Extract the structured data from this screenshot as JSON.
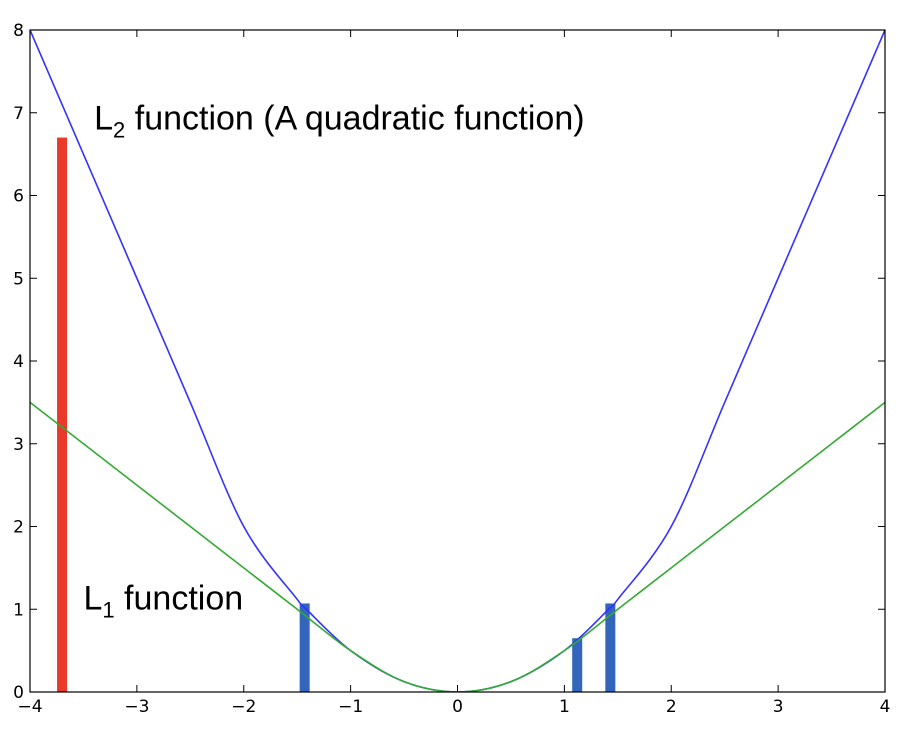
{
  "chart_data": {
    "type": "line",
    "xlim": [
      -4,
      4
    ],
    "ylim": [
      0,
      8
    ],
    "x_ticks": [
      "−4",
      "−3",
      "−2",
      "−1",
      "0",
      "1",
      "2",
      "3",
      "4"
    ],
    "y_ticks": [
      "0",
      "1",
      "2",
      "3",
      "4",
      "5",
      "6",
      "7",
      "8"
    ],
    "grid": false,
    "series": [
      {
        "color": "#3333ff",
        "x": [
          -4,
          -3.5,
          -3,
          -2.5,
          -2,
          -1.5,
          -1.4142,
          -1,
          -0.5,
          0,
          0.5,
          1,
          1.4142,
          1.5,
          2,
          2.5,
          3,
          3.5,
          4
        ],
        "y": [
          8.0,
          6.5,
          5.0,
          3.5,
          2.0,
          1.12,
          1.0,
          0.5,
          0.125,
          0,
          0.125,
          0.5,
          1.0,
          1.12,
          2.0,
          3.5,
          5.0,
          6.5,
          8.0
        ]
      },
      {
        "color": "#33aa33",
        "x": [
          -4,
          -3.5,
          -3,
          -2.5,
          -2,
          -1.5,
          -1,
          -0.5,
          0,
          0.5,
          1,
          1.5,
          2,
          2.5,
          3,
          3.5,
          4
        ],
        "y": [
          3.5,
          3.0,
          2.5,
          2.0,
          1.5,
          1.0,
          0.5,
          0.125,
          0,
          0.125,
          0.5,
          1.0,
          1.5,
          2.0,
          2.5,
          3.0,
          3.5
        ]
      }
    ],
    "bars": [
      {
        "x": -3.7,
        "y": 6.7,
        "color": "#e8392a"
      },
      {
        "x": -1.43,
        "y": 1.07,
        "color": "#3366bb"
      },
      {
        "x": 1.12,
        "y": 0.65,
        "color": "#3366bb"
      },
      {
        "x": 1.43,
        "y": 1.07,
        "color": "#3366bb"
      }
    ],
    "annotations": [
      {
        "name": "l2-label",
        "main": "L",
        "sub": "2",
        "rest": " function (A quadratic function)",
        "x": -3.4,
        "y": 6.8
      },
      {
        "name": "l1-label",
        "main": "L",
        "sub": "1",
        "rest": " function",
        "x": -3.5,
        "y": 1.0
      }
    ]
  }
}
